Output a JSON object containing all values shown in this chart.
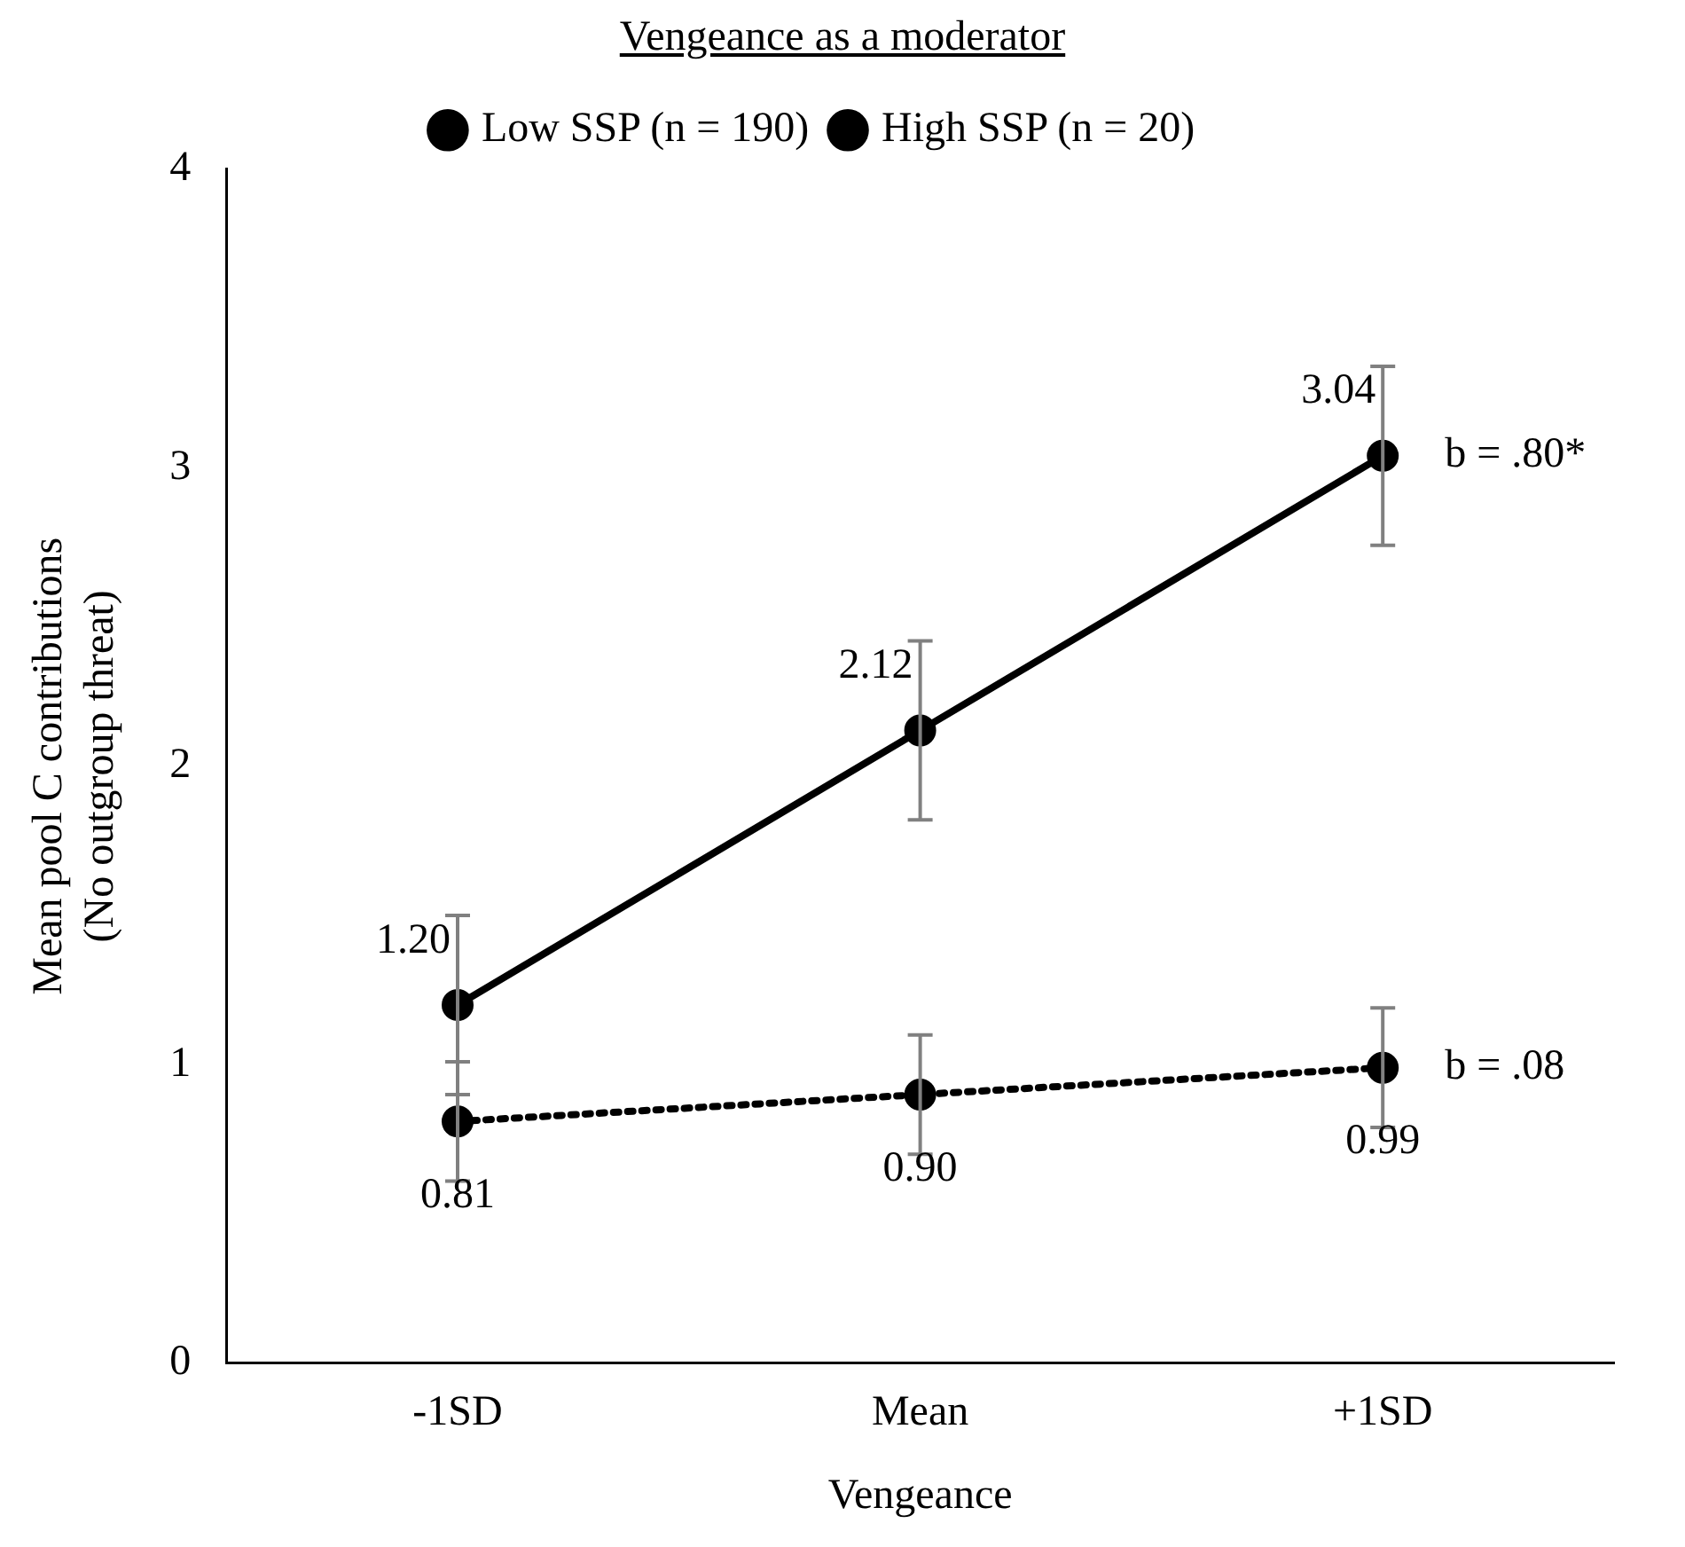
{
  "chart_data": {
    "type": "line",
    "title": "Vengeance as a moderator",
    "xlabel": "Vengeance",
    "ylabel": "Mean pool C contributions\n(No outgroup threat)",
    "categories": [
      "-1SD",
      "Mean",
      "+1SD"
    ],
    "series": [
      {
        "name": "Low SSP (n = 190)",
        "color": "#000000",
        "values": [
          0.81,
          0.9,
          0.99
        ],
        "errors": [
          0.2,
          0.2,
          0.2
        ],
        "value_labels": [
          "0.81",
          "0.90",
          "0.99"
        ],
        "line_style": "dotted",
        "marker": "circle"
      },
      {
        "name": "High SSP (n = 20)",
        "color": "#000000",
        "values": [
          1.2,
          2.12,
          3.04
        ],
        "errors": [
          0.3,
          0.3,
          0.3
        ],
        "value_labels": [
          "1.20",
          "2.12",
          "3.04"
        ],
        "line_style": "solid",
        "marker": "circle"
      }
    ],
    "annotations": [
      {
        "text": "b = .80*",
        "x": "+1SD",
        "y": 3.04
      },
      {
        "text": "b = .08",
        "x": "+1SD",
        "y": 0.99
      }
    ],
    "ylim": [
      0,
      4
    ],
    "yticks": [
      0,
      1,
      2,
      3,
      4
    ],
    "grid": false,
    "legend": "top"
  }
}
